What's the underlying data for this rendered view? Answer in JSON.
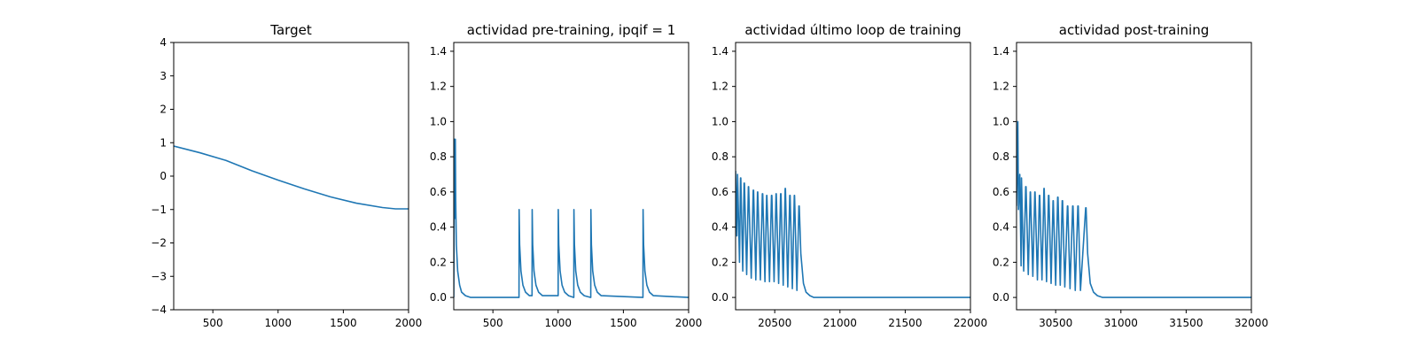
{
  "chart_data": [
    {
      "type": "line",
      "title": "Target",
      "xlim": [
        200,
        2000
      ],
      "ylim": [
        -4,
        4
      ],
      "xticks": [
        500,
        1000,
        1500,
        2000
      ],
      "yticks": [
        -4,
        -3,
        -2,
        -1,
        0,
        1,
        2,
        3,
        4
      ],
      "color": "#1f77b4",
      "series": [
        {
          "x": [
            200,
            400,
            600,
            800,
            1000,
            1200,
            1400,
            1600,
            1800,
            1900,
            2000
          ],
          "y": [
            0.9,
            0.7,
            0.47,
            0.16,
            -0.12,
            -0.38,
            -0.62,
            -0.81,
            -0.94,
            -0.98,
            -0.98
          ]
        }
      ]
    },
    {
      "type": "line",
      "title": "actividad pre-training, ipqif = 1",
      "xlim": [
        200,
        2000
      ],
      "ylim": [
        -0.07,
        1.45
      ],
      "xticks": [
        500,
        1000,
        1500,
        2000
      ],
      "yticks": [
        0.0,
        0.2,
        0.4,
        0.6,
        0.8,
        1.0,
        1.2,
        1.4
      ],
      "yformat": "0.1f",
      "color": "#1f77b4",
      "series": [
        {
          "x": [
            200,
            205,
            210,
            212,
            215,
            220,
            230,
            245,
            260,
            290,
            330,
            700,
            701,
            705,
            715,
            730,
            750,
            780,
            800,
            801,
            805,
            815,
            830,
            850,
            880,
            1000,
            1001,
            1005,
            1015,
            1030,
            1050,
            1080,
            1120,
            1121,
            1125,
            1135,
            1150,
            1170,
            1200,
            1250,
            1251,
            1255,
            1265,
            1280,
            1300,
            1330,
            1650,
            1651,
            1655,
            1665,
            1680,
            1700,
            1730,
            2000
          ],
          "y": [
            0.0,
            0.9,
            0.45,
            0.9,
            0.55,
            0.3,
            0.15,
            0.07,
            0.03,
            0.01,
            0.0,
            0.0,
            0.5,
            0.3,
            0.15,
            0.07,
            0.03,
            0.01,
            0.01,
            0.5,
            0.3,
            0.15,
            0.07,
            0.03,
            0.01,
            0.01,
            0.5,
            0.3,
            0.15,
            0.07,
            0.03,
            0.01,
            0.0,
            0.5,
            0.3,
            0.15,
            0.07,
            0.03,
            0.01,
            0.0,
            0.5,
            0.3,
            0.15,
            0.07,
            0.03,
            0.01,
            0.0,
            0.5,
            0.3,
            0.15,
            0.07,
            0.03,
            0.01,
            0.0
          ]
        }
      ]
    },
    {
      "type": "line",
      "title": "actividad último loop de training",
      "xlim": [
        20200,
        22000
      ],
      "ylim": [
        -0.07,
        1.45
      ],
      "xticks": [
        20500,
        21000,
        21500,
        22000
      ],
      "yticks": [
        0.0,
        0.2,
        0.4,
        0.6,
        0.8,
        1.0,
        1.2,
        1.4
      ],
      "yformat": "0.1f",
      "color": "#1f77b4",
      "series": [
        {
          "x": [
            20200,
            20210,
            20215,
            20230,
            20238,
            20240,
            20255,
            20265,
            20268,
            20285,
            20298,
            20300,
            20320,
            20335,
            20338,
            20355,
            20368,
            20370,
            20390,
            20405,
            20408,
            20425,
            20438,
            20440,
            20460,
            20475,
            20478,
            20495,
            20510,
            20512,
            20530,
            20545,
            20548,
            20565,
            20580,
            20582,
            20600,
            20615,
            20618,
            20635,
            20650,
            20652,
            20670,
            20685,
            20688,
            20700,
            20720,
            20740,
            20770,
            20800,
            20850,
            22000
          ],
          "y": [
            0.72,
            0.35,
            0.7,
            0.2,
            0.68,
            0.68,
            0.15,
            0.65,
            0.65,
            0.13,
            0.63,
            0.63,
            0.11,
            0.61,
            0.61,
            0.1,
            0.6,
            0.6,
            0.1,
            0.59,
            0.59,
            0.09,
            0.58,
            0.58,
            0.09,
            0.58,
            0.58,
            0.09,
            0.59,
            0.59,
            0.08,
            0.59,
            0.59,
            0.07,
            0.62,
            0.62,
            0.06,
            0.58,
            0.58,
            0.05,
            0.58,
            0.58,
            0.04,
            0.52,
            0.52,
            0.25,
            0.08,
            0.03,
            0.01,
            0.0,
            0.0,
            0.0
          ]
        }
      ]
    },
    {
      "type": "line",
      "title": "actividad post-training",
      "xlim": [
        30200,
        32000
      ],
      "ylim": [
        -0.07,
        1.45
      ],
      "xticks": [
        30500,
        31000,
        31500,
        32000
      ],
      "yticks": [
        0.0,
        0.2,
        0.4,
        0.6,
        0.8,
        1.0,
        1.2,
        1.4
      ],
      "yformat": "0.1f",
      "color": "#1f77b4",
      "series": [
        {
          "x": [
            30200,
            30210,
            30215,
            30225,
            30235,
            30238,
            30255,
            30270,
            30273,
            30290,
            30305,
            30307,
            30325,
            30340,
            30342,
            30360,
            30375,
            30378,
            30395,
            30410,
            30412,
            30430,
            30445,
            30448,
            30465,
            30480,
            30482,
            30500,
            30515,
            30518,
            30535,
            30550,
            30553,
            30570,
            30590,
            30593,
            30610,
            30630,
            30633,
            30650,
            30670,
            30673,
            30690,
            30730,
            30733,
            30745,
            30765,
            30790,
            30820,
            30860,
            30900,
            32000
          ],
          "y": [
            0.52,
            1.0,
            0.5,
            0.7,
            0.18,
            0.68,
            0.15,
            0.63,
            0.63,
            0.13,
            0.6,
            0.6,
            0.12,
            0.6,
            0.6,
            0.1,
            0.58,
            0.58,
            0.1,
            0.62,
            0.62,
            0.09,
            0.58,
            0.58,
            0.08,
            0.55,
            0.55,
            0.07,
            0.57,
            0.57,
            0.07,
            0.55,
            0.55,
            0.06,
            0.52,
            0.52,
            0.05,
            0.52,
            0.52,
            0.04,
            0.52,
            0.52,
            0.04,
            0.51,
            0.51,
            0.25,
            0.08,
            0.03,
            0.01,
            0.0,
            0.0,
            0.0
          ]
        }
      ]
    }
  ]
}
